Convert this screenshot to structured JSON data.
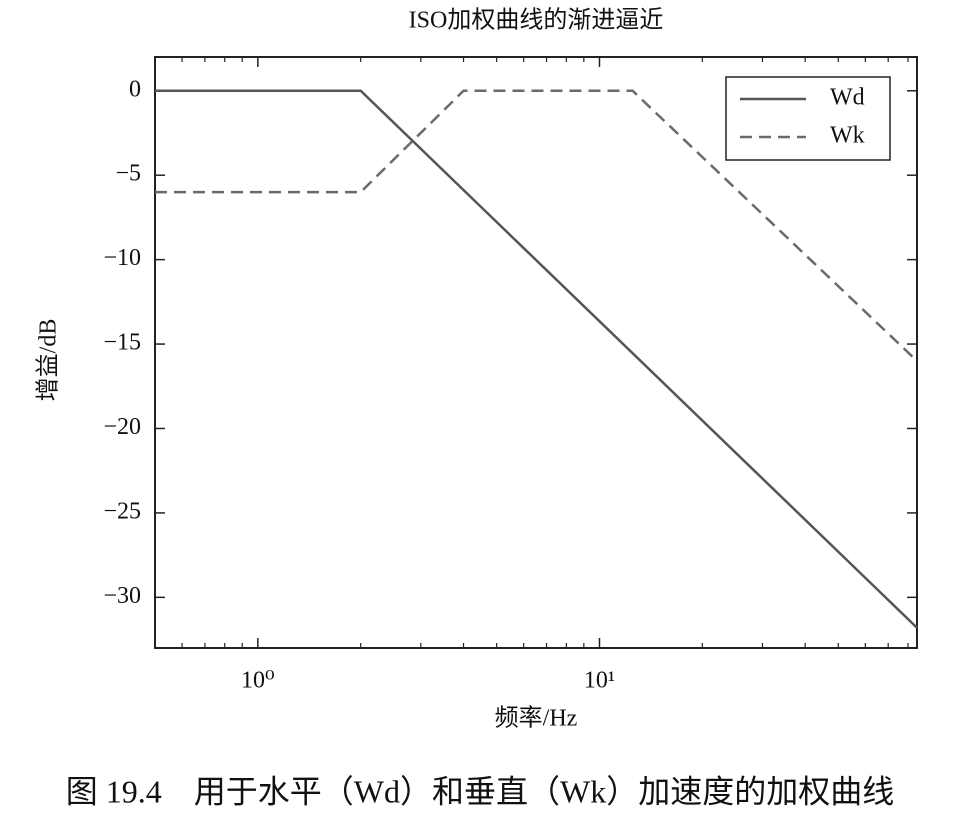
{
  "chart_data": {
    "type": "line",
    "title": "ISO加权曲线的渐进逼近",
    "x_label": "频率/Hz",
    "y_label": "增益/dB",
    "x_scale": "log",
    "xlim": [
      0.5,
      85
    ],
    "ylim": [
      -33,
      2
    ],
    "xticks": [
      {
        "value": 1,
        "label": "10⁰"
      },
      {
        "value": 10,
        "label": "10¹"
      }
    ],
    "xminor_ticks": [
      0.6,
      0.7,
      0.8,
      0.9,
      2,
      3,
      4,
      5,
      6,
      7,
      8,
      9,
      20,
      30,
      40,
      50,
      60,
      70,
      80
    ],
    "yticks": [
      0,
      {
        "value": -5,
        "label": "−5"
      },
      {
        "value": -10,
        "label": "−10"
      },
      {
        "value": -15,
        "label": "−15"
      },
      {
        "value": -20,
        "label": "−20"
      },
      {
        "value": -25,
        "label": "−25"
      },
      {
        "value": -30,
        "label": "−30"
      }
    ],
    "legend": "upper right",
    "series": [
      {
        "name": "Wd",
        "color": "#555555",
        "dash": false,
        "x": [
          0.5,
          2,
          85
        ],
        "y": [
          0,
          0,
          -31.8
        ]
      },
      {
        "name": "Wk",
        "color": "#6a6a6a",
        "dash": true,
        "x": [
          0.5,
          2,
          4,
          12.5,
          85
        ],
        "y": [
          -6,
          -6,
          0,
          0,
          -16
        ]
      }
    ],
    "caption": "图 19.4　用于水平（Wd）和垂直（Wk）加速度的加权曲线"
  }
}
